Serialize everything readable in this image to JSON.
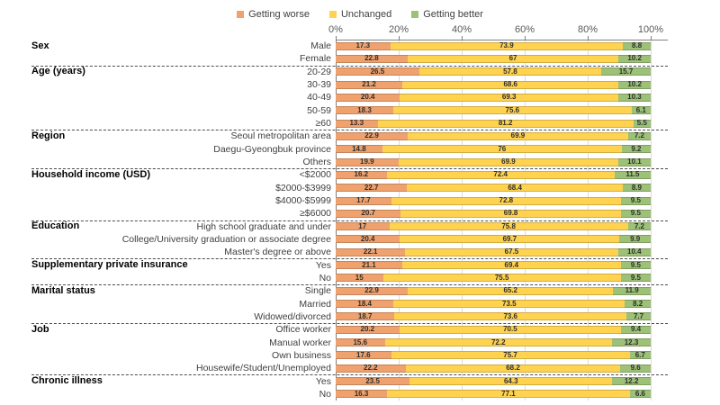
{
  "legend": {
    "items": [
      {
        "label": "Getting worse",
        "color": "#EFA26E"
      },
      {
        "label": "Unchanged",
        "color": "#FFD350"
      },
      {
        "label": "Getting better",
        "color": "#9CC177"
      }
    ]
  },
  "colors": {
    "worse": "#EFA26E",
    "unchanged": "#FFD350",
    "better": "#9CC177",
    "axis": "#808080",
    "gridline": "#DBDBDB"
  },
  "chart_data": {
    "type": "bar",
    "stacked": true,
    "orientation": "horizontal",
    "title": "",
    "xlabel": "",
    "ylabel": "",
    "xlim": [
      0,
      100
    ],
    "x_tick_labels": [
      "0%",
      "20%",
      "40%",
      "60%",
      "80%",
      "100%"
    ],
    "x_tick_values": [
      0,
      20,
      40,
      60,
      80,
      100
    ],
    "grid": true,
    "legend_position": "top",
    "series_names": [
      "Getting worse",
      "Unchanged",
      "Getting better"
    ],
    "groups": [
      {
        "label": "Sex",
        "rows": [
          {
            "category": "Male",
            "values": [
              17.3,
              73.9,
              8.8
            ]
          },
          {
            "category": "Female",
            "values": [
              22.8,
              67,
              10.2
            ]
          }
        ]
      },
      {
        "label": "Age (years)",
        "rows": [
          {
            "category": "20-29",
            "values": [
              26.5,
              57.8,
              15.7
            ]
          },
          {
            "category": "30-39",
            "values": [
              21.2,
              68.6,
              10.2
            ]
          },
          {
            "category": "40-49",
            "values": [
              20.4,
              69.3,
              10.3
            ]
          },
          {
            "category": "50-59",
            "values": [
              18.3,
              75.6,
              6.1
            ]
          },
          {
            "category": "≥60",
            "values": [
              13.3,
              81.2,
              5.5
            ]
          }
        ]
      },
      {
        "label": "Region",
        "rows": [
          {
            "category": "Seoul metropolitan area",
            "values": [
              22.9,
              69.9,
              7.2
            ]
          },
          {
            "category": "Daegu-Gyeongbuk province",
            "values": [
              14.8,
              76,
              9.2
            ]
          },
          {
            "category": "Others",
            "values": [
              19.9,
              69.9,
              10.1
            ]
          }
        ]
      },
      {
        "label": "Household income (USD)",
        "rows": [
          {
            "category": "<$2000",
            "values": [
              16.2,
              72.4,
              11.5
            ]
          },
          {
            "category": "$2000-$3999",
            "values": [
              22.7,
              68.4,
              8.9
            ]
          },
          {
            "category": "$4000-$5999",
            "values": [
              17.7,
              72.8,
              9.5
            ]
          },
          {
            "category": "≥$6000",
            "values": [
              20.7,
              69.8,
              9.5
            ]
          }
        ]
      },
      {
        "label": "Education",
        "rows": [
          {
            "category": "High school graduate and under",
            "values": [
              17,
              75.8,
              7.2
            ]
          },
          {
            "category": "College/University graduation or associate degree",
            "values": [
              20.4,
              69.7,
              9.9
            ]
          },
          {
            "category": "Master's degree or above",
            "values": [
              22.1,
              67.5,
              10.4
            ]
          }
        ]
      },
      {
        "label": "Supplementary private insurance",
        "rows": [
          {
            "category": "Yes",
            "values": [
              21.1,
              69.4,
              9.5
            ]
          },
          {
            "category": "No",
            "values": [
              15,
              75.5,
              9.5
            ]
          }
        ]
      },
      {
        "label": "Marital status",
        "rows": [
          {
            "category": "Single",
            "values": [
              22.9,
              65.2,
              11.9
            ]
          },
          {
            "category": "Married",
            "values": [
              18.4,
              73.5,
              8.2
            ]
          },
          {
            "category": "Widowed/divorced",
            "values": [
              18.7,
              73.6,
              7.7
            ]
          }
        ]
      },
      {
        "label": "Job",
        "rows": [
          {
            "category": "Office worker",
            "values": [
              20.2,
              70.5,
              9.4
            ]
          },
          {
            "category": "Manual worker",
            "values": [
              15.6,
              72.2,
              12.3
            ]
          },
          {
            "category": "Own business",
            "values": [
              17.6,
              75.7,
              6.7
            ]
          },
          {
            "category": "Housewife/Student/Unemployed",
            "values": [
              22.2,
              68.2,
              9.6
            ]
          }
        ]
      },
      {
        "label": "Chronic illness",
        "rows": [
          {
            "category": "Yes",
            "values": [
              23.5,
              64.3,
              12.2
            ]
          },
          {
            "category": "No",
            "values": [
              16.3,
              77.1,
              6.6
            ]
          }
        ]
      }
    ]
  }
}
